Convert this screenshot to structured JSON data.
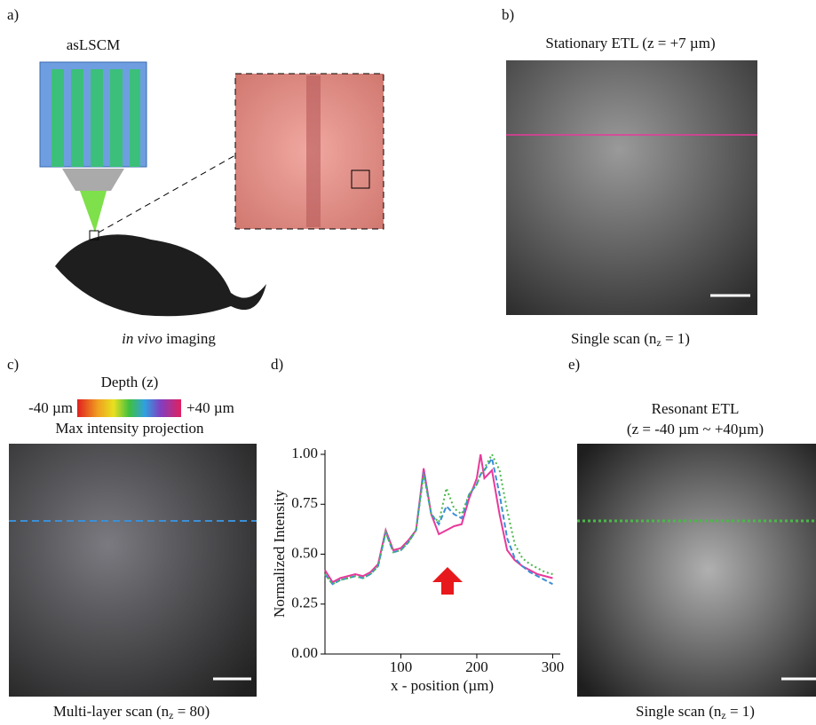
{
  "panels": {
    "a": {
      "letter": "a)",
      "device": "asLSCM",
      "caption_italic": "in vivo",
      "caption_rest": " imaging"
    },
    "b": {
      "letter": "b)",
      "title": "Stationary ETL (z = +7 µm)",
      "caption": [
        "Single scan (n",
        "z",
        " = 1)"
      ]
    },
    "c": {
      "letter": "c)",
      "colorbar_title": "Depth (z)",
      "colorbar_min": "-40 µm",
      "colorbar_max": "+40 µm",
      "subtitle": "Max intensity projection",
      "caption": [
        "Multi-layer scan (n",
        "z",
        " = 80)"
      ]
    },
    "d": {
      "letter": "d)"
    },
    "e": {
      "letter": "e)",
      "title": "Resonant ETL",
      "subtitle": "(z = -40 µm ~ +40µm)",
      "caption": [
        "Single scan (n",
        "z",
        " = 1)"
      ]
    }
  },
  "chart_data": {
    "type": "line",
    "xlabel": "x - position (µm)",
    "ylabel": "Normalized Intensity",
    "xlim": [
      0,
      310
    ],
    "ylim": [
      0,
      1
    ],
    "xticks": [
      100,
      200,
      300
    ],
    "yticks": [
      {
        "value": 0,
        "label": "0.00"
      },
      {
        "value": 0.25,
        "label": "0.25"
      },
      {
        "value": 0.5,
        "label": "0.50"
      },
      {
        "value": 0.75,
        "label": "0.75"
      },
      {
        "value": 1,
        "label": "1.00"
      }
    ],
    "x": [
      0,
      10,
      20,
      30,
      40,
      50,
      60,
      70,
      80,
      90,
      100,
      110,
      120,
      130,
      140,
      150,
      160,
      170,
      180,
      190,
      200,
      205,
      210,
      220,
      230,
      240,
      250,
      260,
      270,
      280,
      290,
      300
    ],
    "series": [
      {
        "color": "#e8399a",
        "style": "solid",
        "values": [
          0.42,
          0.36,
          0.38,
          0.39,
          0.4,
          0.39,
          0.41,
          0.45,
          0.62,
          0.52,
          0.53,
          0.57,
          0.62,
          0.93,
          0.7,
          0.6,
          0.62,
          0.64,
          0.65,
          0.78,
          0.88,
          1.0,
          0.88,
          0.92,
          0.7,
          0.52,
          0.47,
          0.44,
          0.42,
          0.4,
          0.39,
          0.38
        ]
      },
      {
        "color": "#3b8fd6",
        "style": "dashed",
        "values": [
          0.4,
          0.35,
          0.37,
          0.38,
          0.39,
          0.38,
          0.4,
          0.44,
          0.61,
          0.51,
          0.52,
          0.56,
          0.62,
          0.91,
          0.7,
          0.65,
          0.74,
          0.7,
          0.68,
          0.8,
          0.85,
          0.9,
          0.92,
          0.98,
          0.8,
          0.58,
          0.48,
          0.44,
          0.41,
          0.39,
          0.37,
          0.35
        ]
      },
      {
        "color": "#4bb84a",
        "style": "dotted",
        "values": [
          0.4,
          0.35,
          0.37,
          0.38,
          0.39,
          0.38,
          0.4,
          0.44,
          0.61,
          0.51,
          0.52,
          0.56,
          0.62,
          0.9,
          0.7,
          0.66,
          0.83,
          0.73,
          0.7,
          0.8,
          0.85,
          0.9,
          0.93,
          1.0,
          0.92,
          0.72,
          0.55,
          0.48,
          0.45,
          0.43,
          0.41,
          0.4
        ]
      }
    ]
  }
}
